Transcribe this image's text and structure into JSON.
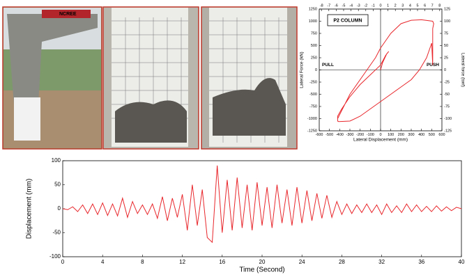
{
  "photos": [
    {
      "label": "NCREE"
    }
  ],
  "chart_data": [
    {
      "type": "line",
      "title": "P2 COLUMN",
      "annotations": [
        "PULL",
        "PUSH"
      ],
      "xlabel": "Lateral Displacement (mm)",
      "ylabel": "Lateral Force (kN)",
      "y2label": "Lateral force (tonf)",
      "color": "#e8262b",
      "x": [
        0,
        20,
        60,
        80,
        50,
        0,
        -100,
        -200,
        -300,
        -380,
        -420,
        -420,
        -410,
        -300,
        -200,
        -100,
        0,
        100,
        200,
        300,
        380,
        450,
        500,
        510,
        510,
        520,
        510,
        400,
        300,
        200,
        100,
        50,
        0,
        -50,
        -150,
        -300,
        -420
      ],
      "values": [
        0,
        150,
        330,
        380,
        300,
        100,
        -100,
        -300,
        -550,
        -800,
        -950,
        -1050,
        -1060,
        -1050,
        -950,
        -800,
        -650,
        -500,
        -350,
        -200,
        0,
        250,
        550,
        100,
        850,
        950,
        1000,
        1030,
        1020,
        950,
        750,
        600,
        450,
        250,
        -50,
        -500,
        -1000
      ],
      "xlim": [
        -600,
        600
      ],
      "xticks": [
        -600,
        -500,
        -400,
        -300,
        -200,
        -100,
        0,
        100,
        200,
        300,
        400,
        500,
        600
      ],
      "x2lim": [
        -8.3,
        8.3
      ],
      "x2ticks": [
        -8,
        -7,
        -6,
        -5,
        -4,
        -3,
        -2,
        -1,
        0,
        1,
        2,
        3,
        4,
        5,
        6,
        7,
        8
      ],
      "ylim": [
        -1250,
        1250
      ],
      "yticks": [
        -1250,
        -1000,
        -750,
        -500,
        -250,
        0,
        250,
        500,
        750,
        1000,
        1250
      ],
      "y2lim": [
        -125,
        125
      ],
      "y2ticks": [
        -125,
        -100,
        -75,
        -50,
        -25,
        0,
        25,
        50,
        75,
        100,
        125
      ],
      "zero_lines": true
    },
    {
      "type": "line",
      "xlabel": "Time (Second)",
      "ylabel": "Displacement (mm)",
      "color": "#e8262b",
      "x": [
        0,
        0.5,
        1,
        1.5,
        2,
        2.5,
        3,
        3.5,
        4,
        4.5,
        5,
        5.5,
        6,
        6.5,
        7,
        7.5,
        8,
        8.5,
        9,
        9.5,
        10,
        10.5,
        11,
        11.5,
        12,
        12.5,
        13,
        13.5,
        14,
        14.5,
        15,
        15.5,
        16,
        16.5,
        17,
        17.5,
        18,
        18.5,
        19,
        19.5,
        20,
        20.5,
        21,
        21.5,
        22,
        22.5,
        23,
        23.5,
        24,
        24.5,
        25,
        25.5,
        26,
        26.5,
        27,
        27.5,
        28,
        28.5,
        29,
        29.5,
        30,
        30.5,
        31,
        31.5,
        32,
        32.5,
        33,
        33.5,
        34,
        34.5,
        35,
        35.5,
        36,
        36.5,
        37,
        37.5,
        38,
        38.5,
        39,
        39.5,
        40
      ],
      "values": [
        0,
        -2,
        4,
        -6,
        8,
        -10,
        10,
        -12,
        12,
        -14,
        10,
        -15,
        22,
        -18,
        15,
        -10,
        8,
        -12,
        10,
        -20,
        25,
        -25,
        22,
        -18,
        30,
        -45,
        50,
        -35,
        40,
        -60,
        -70,
        90,
        -50,
        60,
        -45,
        65,
        -40,
        50,
        -45,
        55,
        -35,
        45,
        -40,
        50,
        -30,
        40,
        -35,
        45,
        -30,
        38,
        -25,
        32,
        -20,
        28,
        -18,
        15,
        -12,
        10,
        -10,
        8,
        -8,
        10,
        -8,
        8,
        -12,
        10,
        -8,
        6,
        -8,
        10,
        -6,
        8,
        -6,
        5,
        -6,
        6,
        -5,
        4,
        -4,
        3,
        0
      ],
      "xlim": [
        0,
        40
      ],
      "xticks": [
        0,
        4,
        8,
        12,
        16,
        20,
        24,
        28,
        32,
        36,
        40
      ],
      "ylim": [
        -100,
        100
      ],
      "yticks": [
        -100,
        -50,
        0,
        50,
        100
      ]
    }
  ]
}
